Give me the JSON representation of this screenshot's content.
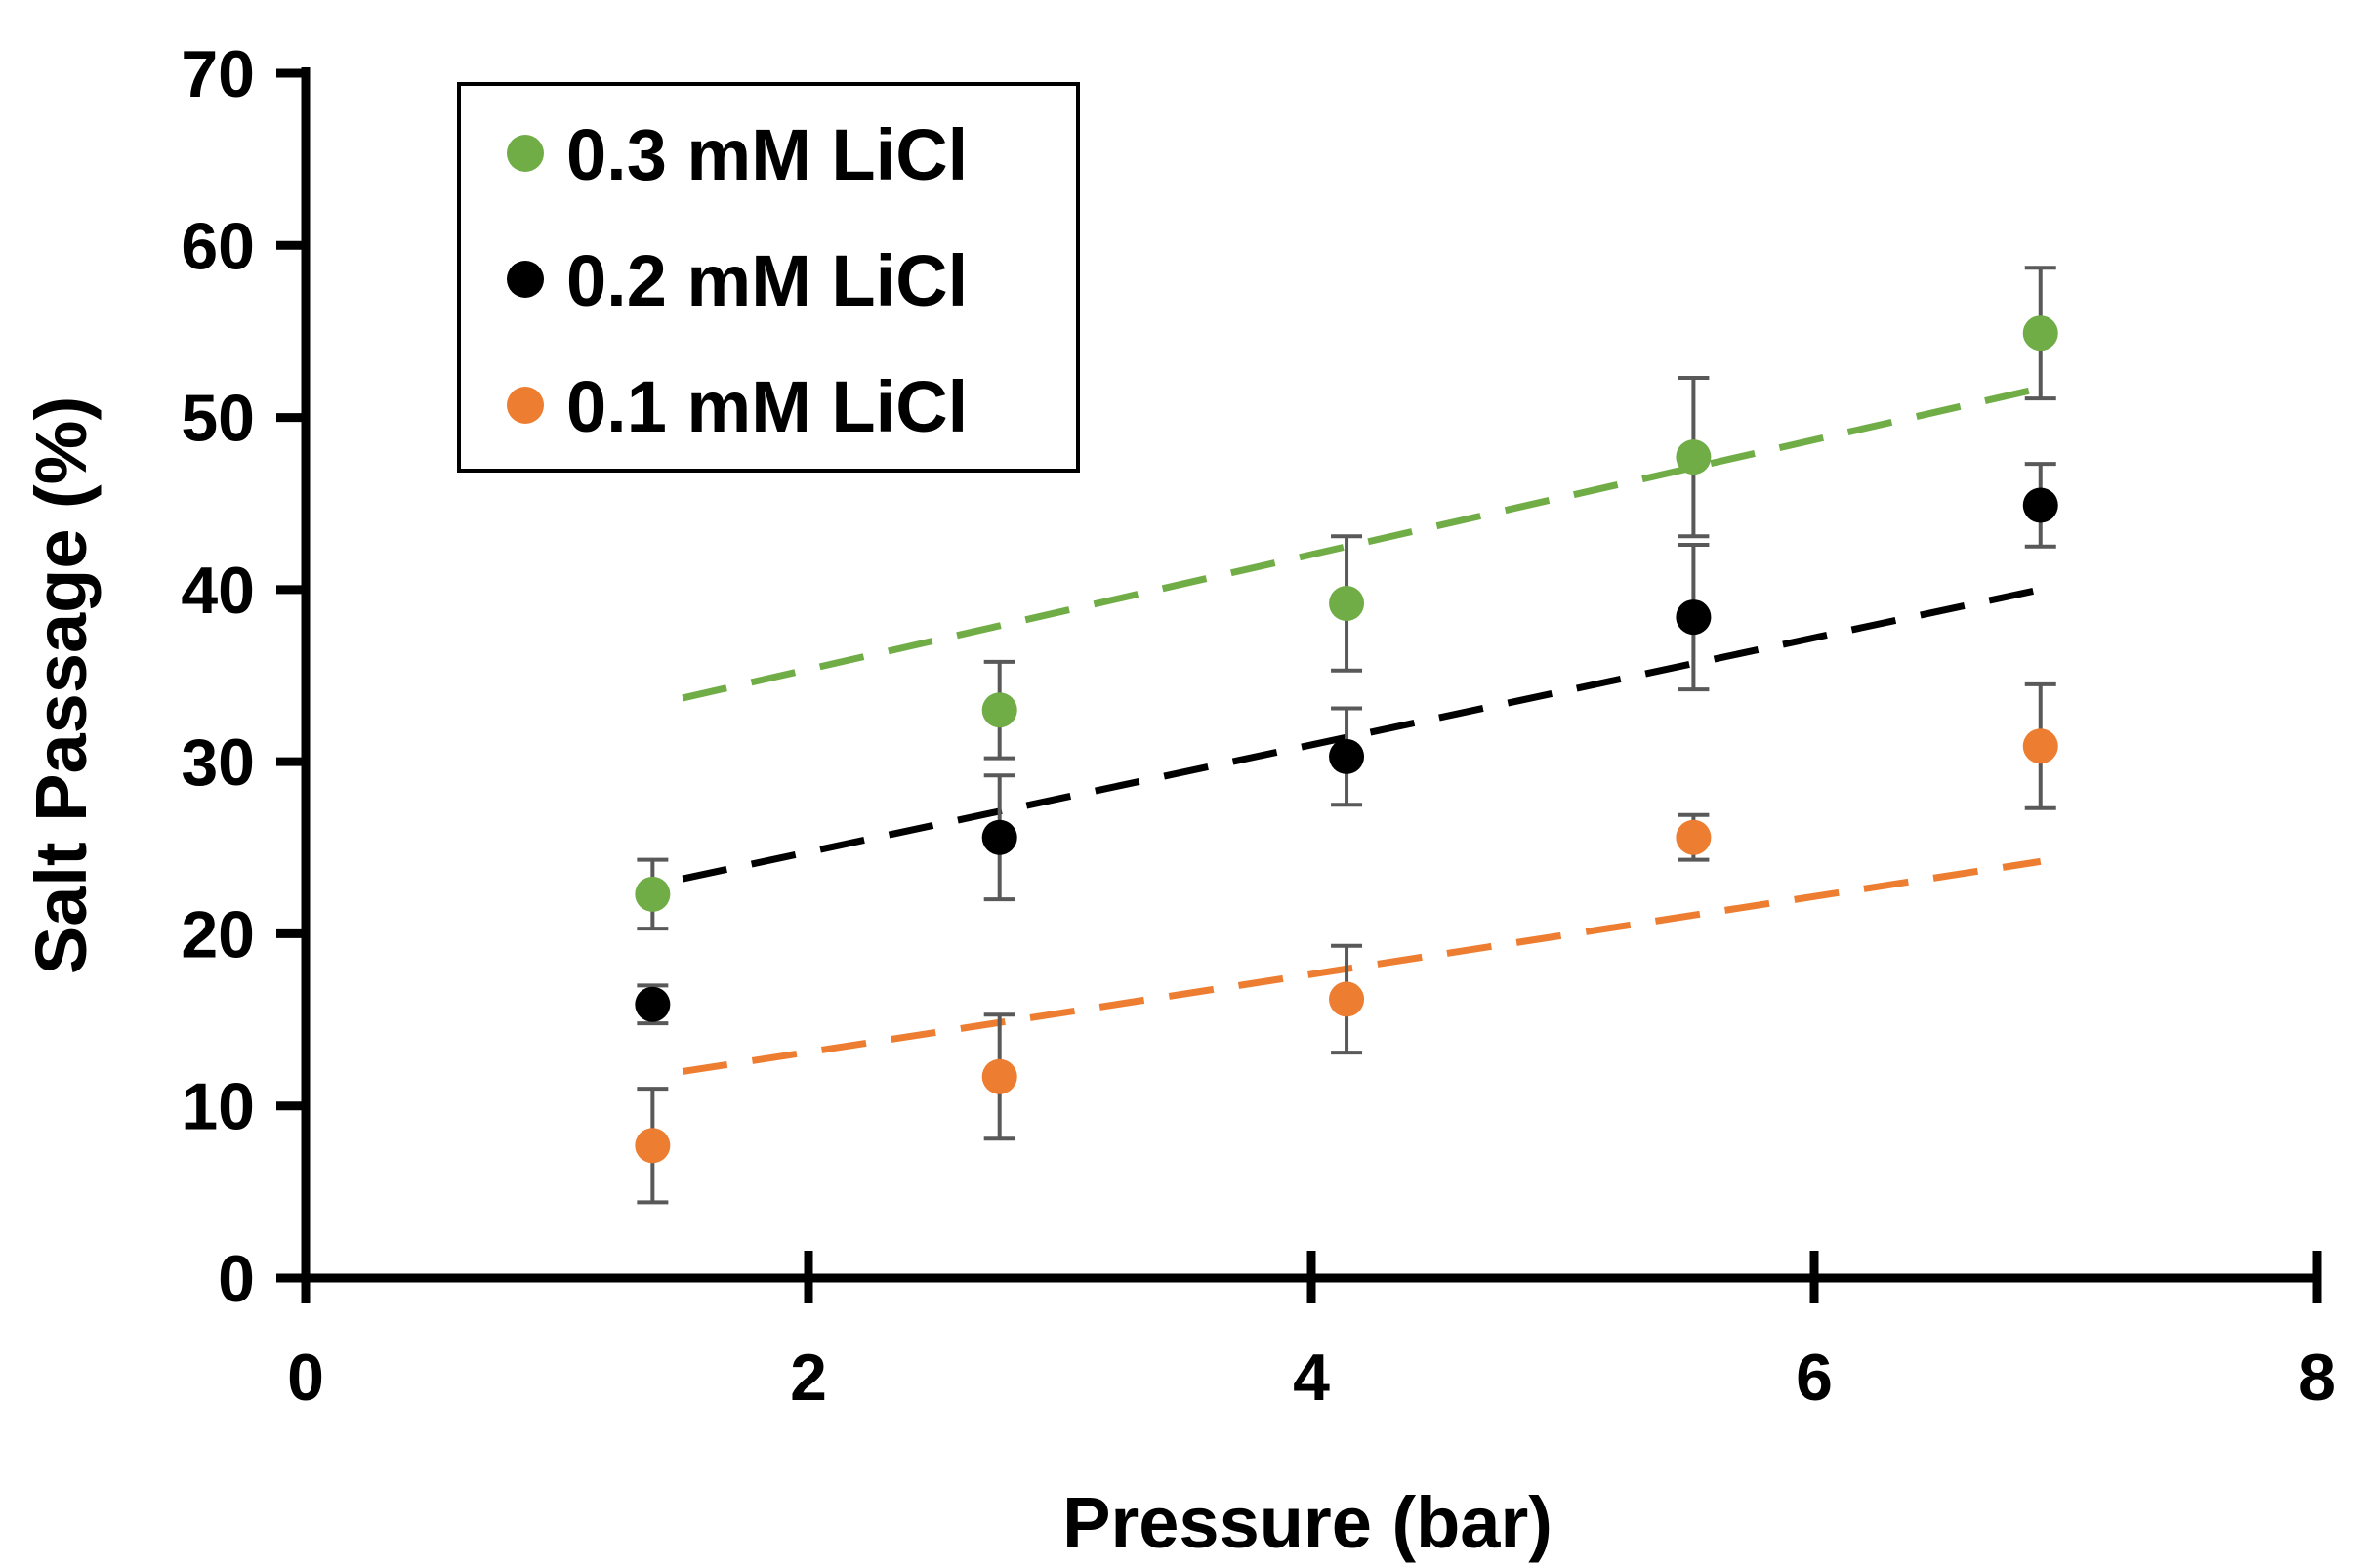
{
  "chart_data": {
    "type": "scatter",
    "title": "",
    "xlabel": "Pressure (bar)",
    "ylabel": "Salt Passage (%)",
    "xlim": [
      0,
      8
    ],
    "ylim": [
      0,
      70
    ],
    "xticks": [
      0,
      2,
      4,
      6,
      8
    ],
    "yticks": [
      0,
      10,
      20,
      30,
      40,
      50,
      60,
      70
    ],
    "grid": false,
    "legend_position": "top-left",
    "series": [
      {
        "name": "0.3 mM LiCl",
        "color": "#70ad47",
        "x": [
          1.38,
          2.76,
          4.14,
          5.52,
          6.9
        ],
        "y": [
          22.3,
          33.0,
          39.2,
          47.7,
          54.9
        ],
        "error": [
          2.0,
          2.8,
          3.9,
          4.6,
          3.8
        ],
        "trend": {
          "x": [
            1.5,
            6.9
          ],
          "y": [
            33.7,
            51.7
          ]
        }
      },
      {
        "name": "0.2 mM LiCl",
        "color": "#000000",
        "x": [
          1.38,
          2.76,
          4.14,
          5.52,
          6.9
        ],
        "y": [
          15.9,
          25.6,
          30.3,
          38.4,
          44.9
        ],
        "error": [
          1.1,
          3.6,
          2.8,
          4.2,
          2.4
        ],
        "trend": {
          "x": [
            1.5,
            6.9
          ],
          "y": [
            23.2,
            40.0
          ]
        }
      },
      {
        "name": "0.1 mM LiCl",
        "color": "#ed7d31",
        "x": [
          1.38,
          2.76,
          4.14,
          5.52,
          6.9
        ],
        "y": [
          7.7,
          11.7,
          16.2,
          25.6,
          30.9
        ],
        "error": [
          3.3,
          3.6,
          3.1,
          1.3,
          3.6
        ],
        "trend": {
          "x": [
            1.5,
            6.9
          ],
          "y": [
            12.0,
            24.2
          ]
        }
      }
    ]
  }
}
